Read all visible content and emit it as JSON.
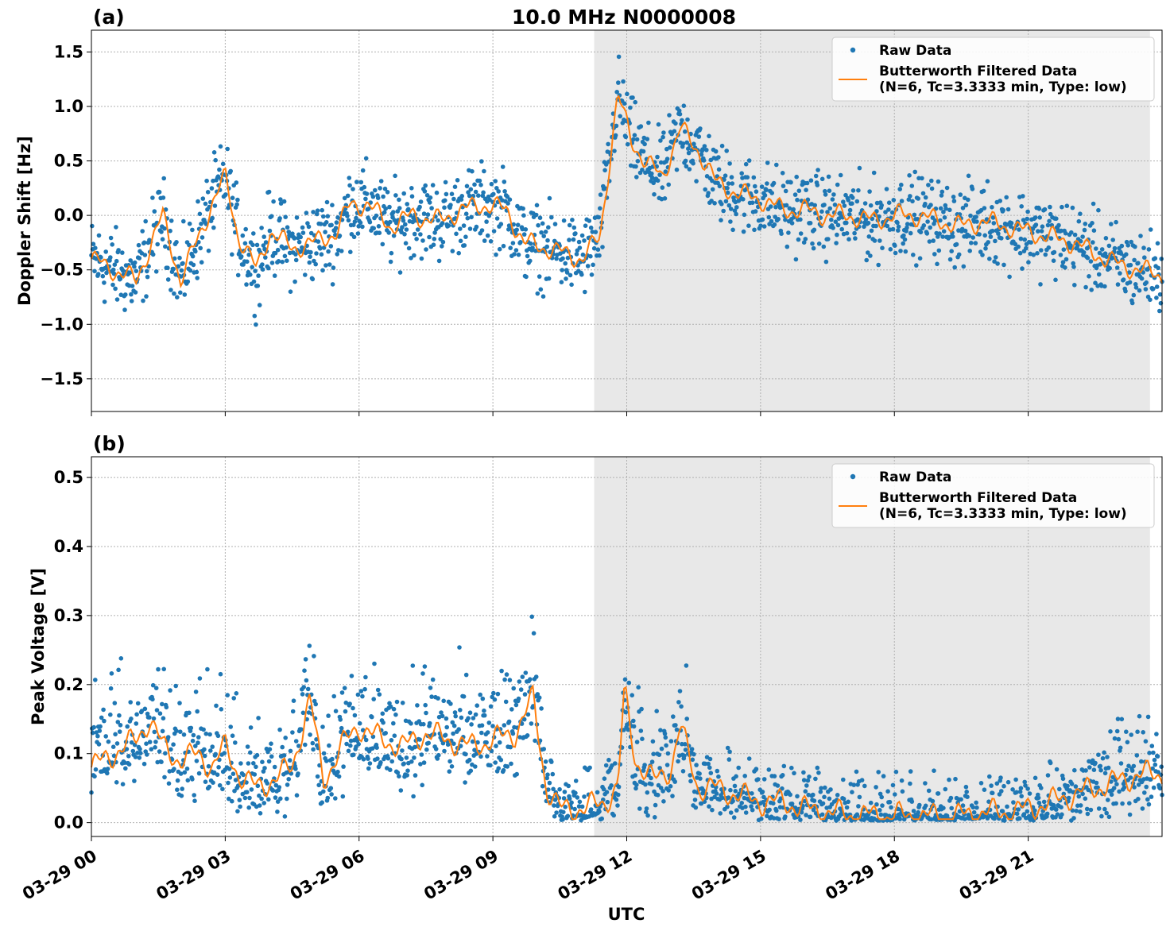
{
  "title": "10.0 MHz N0000008",
  "xlabel": "UTC",
  "x_ticks": [
    "03-29 00",
    "03-29 03",
    "03-29 06",
    "03-29 09",
    "03-29 12",
    "03-29 15",
    "03-29 18",
    "03-29 21"
  ],
  "colors": {
    "raw": "#1f77b4",
    "filtered": "#ff7f0e",
    "shade": "#e8e8e8"
  },
  "legend": {
    "raw": "Raw Data",
    "filtered_line1": "Butterworth Filtered Data",
    "filtered_line2": "(N=6, Tc=3.3333 min, Type: low)"
  },
  "chart_data": [
    {
      "type": "scatter",
      "panel_label": "(a)",
      "ylabel": "Doppler Shift [Hz]",
      "xlim_hours": [
        0,
        24
      ],
      "ylim": [
        -1.8,
        1.7
      ],
      "y_ticks": [
        1.5,
        1.0,
        0.5,
        0.0,
        -0.5,
        -1.0,
        -1.5
      ],
      "y_tick_labels": [
        "1.5",
        "1.0",
        "0.5",
        "0.0",
        "−0.5",
        "−1.0",
        "−1.5"
      ],
      "shaded_range_hours": [
        11.27,
        23.73
      ],
      "legend_position": "top-right",
      "grid": true,
      "series": [
        {
          "name": "Raw Data",
          "style": "points",
          "x_hours": [
            0,
            0.5,
            1.0,
            1.3,
            1.6,
            2.0,
            2.4,
            2.7,
            3.0,
            3.3,
            3.7,
            4.0,
            4.5,
            5.0,
            5.5,
            5.8,
            6.2,
            6.7,
            7.2,
            7.8,
            8.3,
            8.8,
            9.3,
            9.7,
            10.2,
            10.6,
            11.0,
            11.4,
            11.8,
            12.1,
            12.4,
            12.8,
            13.2,
            13.6,
            14.0,
            14.5,
            15.0,
            15.5,
            16.0,
            16.5,
            17.0,
            17.5,
            18.0,
            18.5,
            19.0,
            19.5,
            20.0,
            20.5,
            21.0,
            21.5,
            22.0,
            22.5,
            23.0,
            23.5,
            24.0
          ],
          "y": [
            -0.4,
            -0.5,
            -0.6,
            -0.3,
            0.0,
            -0.6,
            -0.2,
            0.1,
            0.35,
            -0.2,
            -0.5,
            -0.15,
            -0.3,
            -0.25,
            -0.15,
            0.1,
            0.1,
            -0.1,
            0.0,
            -0.05,
            0.05,
            0.1,
            0.05,
            -0.25,
            -0.3,
            -0.35,
            -0.4,
            -0.2,
            1.1,
            0.7,
            0.5,
            0.35,
            0.8,
            0.6,
            0.3,
            0.2,
            0.15,
            0.05,
            0.05,
            0.0,
            0.0,
            -0.05,
            0.0,
            0.0,
            -0.05,
            -0.1,
            -0.05,
            -0.1,
            -0.15,
            -0.2,
            -0.25,
            -0.35,
            -0.45,
            -0.5,
            -0.55
          ],
          "spread": 0.18
        },
        {
          "name": "Butterworth Filtered Data",
          "style": "line",
          "x_hours": [
            0,
            0.5,
            1.0,
            1.3,
            1.6,
            2.0,
            2.4,
            2.7,
            3.0,
            3.3,
            3.7,
            4.0,
            4.5,
            5.0,
            5.5,
            5.8,
            6.2,
            6.7,
            7.2,
            7.8,
            8.3,
            8.8,
            9.3,
            9.7,
            10.2,
            10.6,
            11.0,
            11.4,
            11.8,
            12.1,
            12.4,
            12.8,
            13.2,
            13.6,
            14.0,
            14.5,
            15.0,
            15.5,
            16.0,
            16.5,
            17.0,
            17.5,
            18.0,
            18.5,
            19.0,
            19.5,
            20.0,
            20.5,
            21.0,
            21.5,
            22.0,
            22.5,
            23.0,
            23.5,
            24.0
          ],
          "y": [
            -0.4,
            -0.5,
            -0.6,
            -0.3,
            0.0,
            -0.6,
            -0.2,
            0.1,
            0.35,
            -0.2,
            -0.5,
            -0.15,
            -0.3,
            -0.25,
            -0.15,
            0.1,
            0.1,
            -0.1,
            0.0,
            -0.05,
            0.05,
            0.1,
            0.05,
            -0.25,
            -0.3,
            -0.35,
            -0.4,
            -0.2,
            1.1,
            0.7,
            0.5,
            0.35,
            0.8,
            0.6,
            0.3,
            0.2,
            0.15,
            0.05,
            0.05,
            0.0,
            0.0,
            -0.05,
            0.0,
            0.0,
            -0.05,
            -0.1,
            -0.05,
            -0.1,
            -0.15,
            -0.2,
            -0.25,
            -0.35,
            -0.45,
            -0.5,
            -0.55
          ]
        }
      ]
    },
    {
      "type": "scatter",
      "panel_label": "(b)",
      "ylabel": "Peak Voltage [V]",
      "xlim_hours": [
        0,
        24
      ],
      "ylim": [
        -0.02,
        0.53
      ],
      "y_ticks": [
        0.5,
        0.4,
        0.3,
        0.2,
        0.1,
        0.0
      ],
      "y_tick_labels": [
        "0.5",
        "0.4",
        "0.3",
        "0.2",
        "0.1",
        "0.0"
      ],
      "shaded_range_hours": [
        11.27,
        23.73
      ],
      "legend_position": "top-right",
      "grid": true,
      "series": [
        {
          "name": "Raw Data",
          "style": "points",
          "x_hours": [
            0,
            0.5,
            1.0,
            1.3,
            1.6,
            2.0,
            2.4,
            2.7,
            3.0,
            3.3,
            3.7,
            4.0,
            4.5,
            4.9,
            5.2,
            5.6,
            6.0,
            6.5,
            7.0,
            7.5,
            8.0,
            8.5,
            9.0,
            9.5,
            9.9,
            10.2,
            10.5,
            11.0,
            11.5,
            11.8,
            11.95,
            12.2,
            12.6,
            13.0,
            13.2,
            13.6,
            14.0,
            14.5,
            15.0,
            15.5,
            16.0,
            16.5,
            17.0,
            17.5,
            18.0,
            18.5,
            19.0,
            19.5,
            20.0,
            20.5,
            21.0,
            21.5,
            22.0,
            22.5,
            23.0,
            23.5,
            24.0
          ],
          "y": [
            0.08,
            0.1,
            0.12,
            0.15,
            0.11,
            0.09,
            0.1,
            0.08,
            0.11,
            0.07,
            0.05,
            0.06,
            0.08,
            0.18,
            0.06,
            0.11,
            0.14,
            0.12,
            0.11,
            0.13,
            0.12,
            0.11,
            0.12,
            0.13,
            0.18,
            0.05,
            0.02,
            0.02,
            0.03,
            0.05,
            0.19,
            0.09,
            0.06,
            0.08,
            0.14,
            0.05,
            0.05,
            0.04,
            0.03,
            0.03,
            0.02,
            0.015,
            0.012,
            0.01,
            0.01,
            0.01,
            0.008,
            0.01,
            0.015,
            0.015,
            0.02,
            0.03,
            0.04,
            0.05,
            0.06,
            0.07,
            0.07
          ],
          "spread": 0.035
        },
        {
          "name": "Butterworth Filtered Data",
          "style": "line",
          "x_hours": [
            0,
            0.5,
            1.0,
            1.3,
            1.6,
            2.0,
            2.4,
            2.7,
            3.0,
            3.3,
            3.7,
            4.0,
            4.5,
            4.9,
            5.2,
            5.6,
            6.0,
            6.5,
            7.0,
            7.5,
            8.0,
            8.5,
            9.0,
            9.5,
            9.9,
            10.2,
            10.5,
            11.0,
            11.5,
            11.8,
            11.95,
            12.2,
            12.6,
            13.0,
            13.2,
            13.6,
            14.0,
            14.5,
            15.0,
            15.5,
            16.0,
            16.5,
            17.0,
            17.5,
            18.0,
            18.5,
            19.0,
            19.5,
            20.0,
            20.5,
            21.0,
            21.5,
            22.0,
            22.5,
            23.0,
            23.5,
            24.0
          ],
          "y": [
            0.08,
            0.1,
            0.12,
            0.15,
            0.11,
            0.09,
            0.1,
            0.08,
            0.11,
            0.07,
            0.05,
            0.06,
            0.08,
            0.18,
            0.06,
            0.11,
            0.14,
            0.12,
            0.11,
            0.13,
            0.12,
            0.11,
            0.12,
            0.13,
            0.18,
            0.05,
            0.02,
            0.02,
            0.03,
            0.05,
            0.19,
            0.09,
            0.06,
            0.08,
            0.14,
            0.05,
            0.05,
            0.04,
            0.03,
            0.03,
            0.02,
            0.015,
            0.012,
            0.01,
            0.01,
            0.01,
            0.008,
            0.01,
            0.015,
            0.015,
            0.02,
            0.03,
            0.04,
            0.05,
            0.06,
            0.07,
            0.07
          ]
        }
      ]
    }
  ]
}
